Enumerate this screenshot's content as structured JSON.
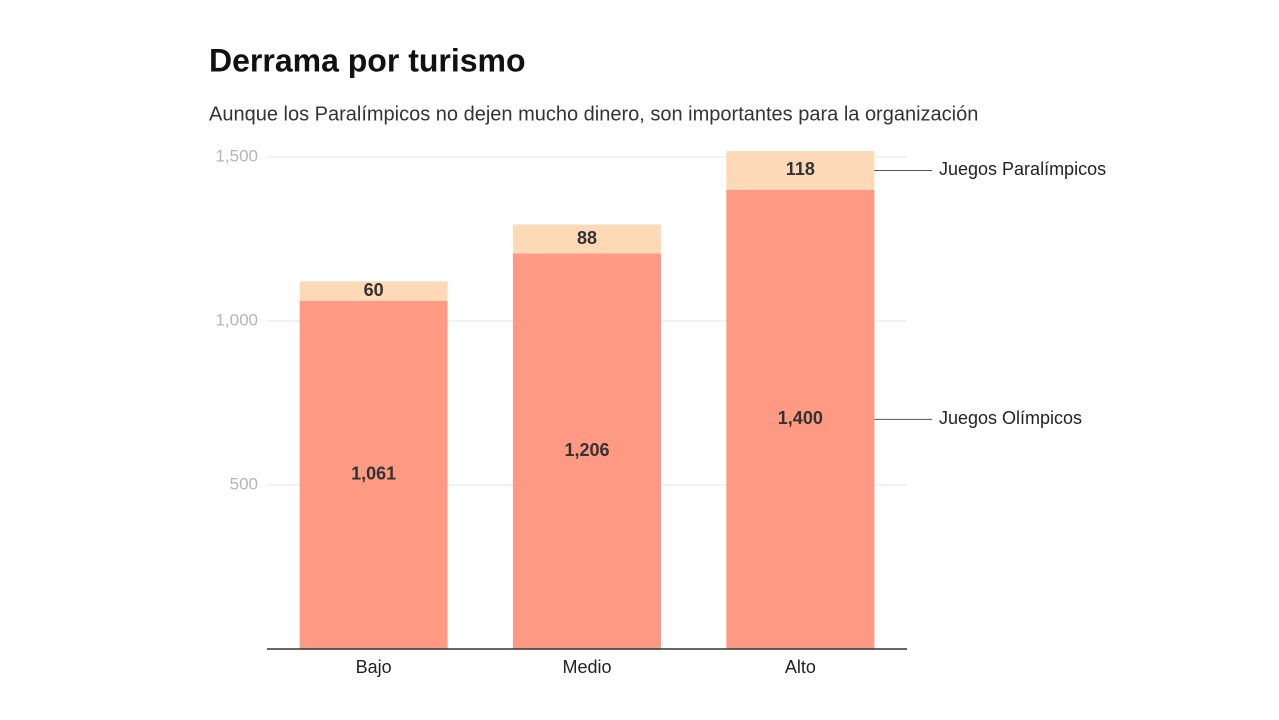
{
  "chart_data": {
    "type": "stacked_bar",
    "title": "Derrama por turismo",
    "subtitle": "Aunque los Paralímpicos no dejen mucho dinero, son importantes para la organización",
    "categories": [
      "Bajo",
      "Medio",
      "Alto"
    ],
    "series": [
      {
        "name": "Juegos Olímpicos",
        "color": "#fe9a84",
        "values": [
          1061,
          1206,
          1400
        ],
        "value_labels": [
          "1,061",
          "1,206",
          "1,400"
        ]
      },
      {
        "name": "Juegos Paralímpicos",
        "color": "#fdd9b8",
        "values": [
          60,
          88,
          118
        ],
        "value_labels": [
          "60",
          "88",
          "118"
        ]
      }
    ],
    "ylim": [
      0,
      1500
    ],
    "yticks": [
      500,
      {
        "value": 1000,
        "label": "1,000"
      },
      {
        "value": 1500,
        "label": "1,500"
      }
    ],
    "grid": true
  }
}
